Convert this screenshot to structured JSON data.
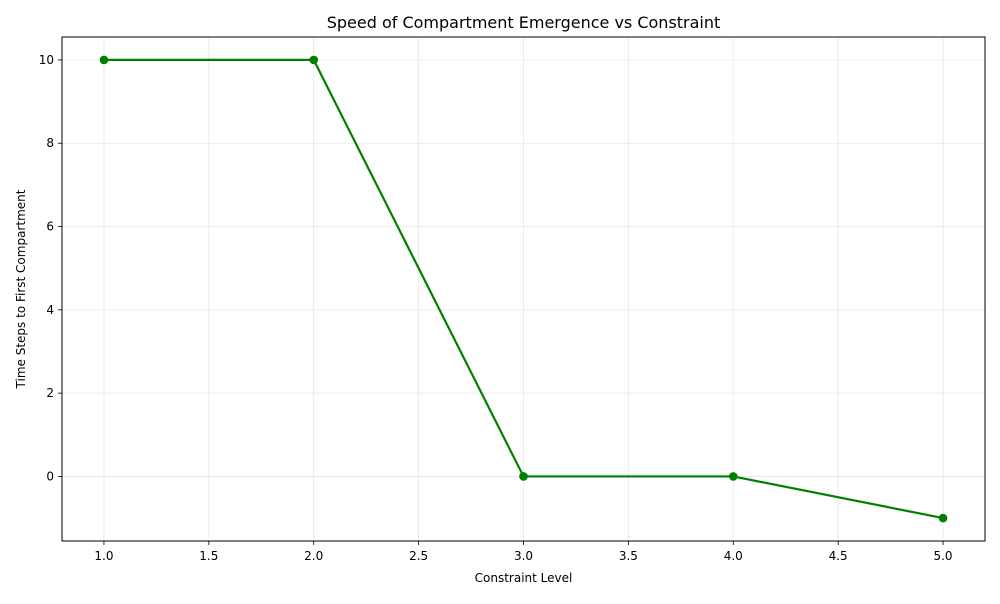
{
  "chart_data": {
    "type": "line",
    "title": "Speed of Compartment Emergence vs Constraint",
    "xlabel": "Constraint Level",
    "ylabel": "Time Steps to First Compartment",
    "xlim": [
      0.8,
      5.2
    ],
    "ylim": [
      -1.55,
      10.55
    ],
    "x_ticks": [
      1.0,
      1.5,
      2.0,
      2.5,
      3.0,
      3.5,
      4.0,
      4.5,
      5.0
    ],
    "x_tick_labels": [
      "1.0",
      "1.5",
      "2.0",
      "2.5",
      "3.0",
      "3.5",
      "4.0",
      "4.5",
      "5.0"
    ],
    "y_ticks": [
      0,
      2,
      4,
      6,
      8,
      10
    ],
    "y_tick_labels": [
      "0",
      "2",
      "4",
      "6",
      "8",
      "10"
    ],
    "grid": true,
    "series": [
      {
        "color": "#008000",
        "marker": "circle",
        "x": [
          1,
          2,
          3,
          4,
          5
        ],
        "y": [
          10,
          10,
          0,
          0,
          -1
        ]
      }
    ]
  }
}
